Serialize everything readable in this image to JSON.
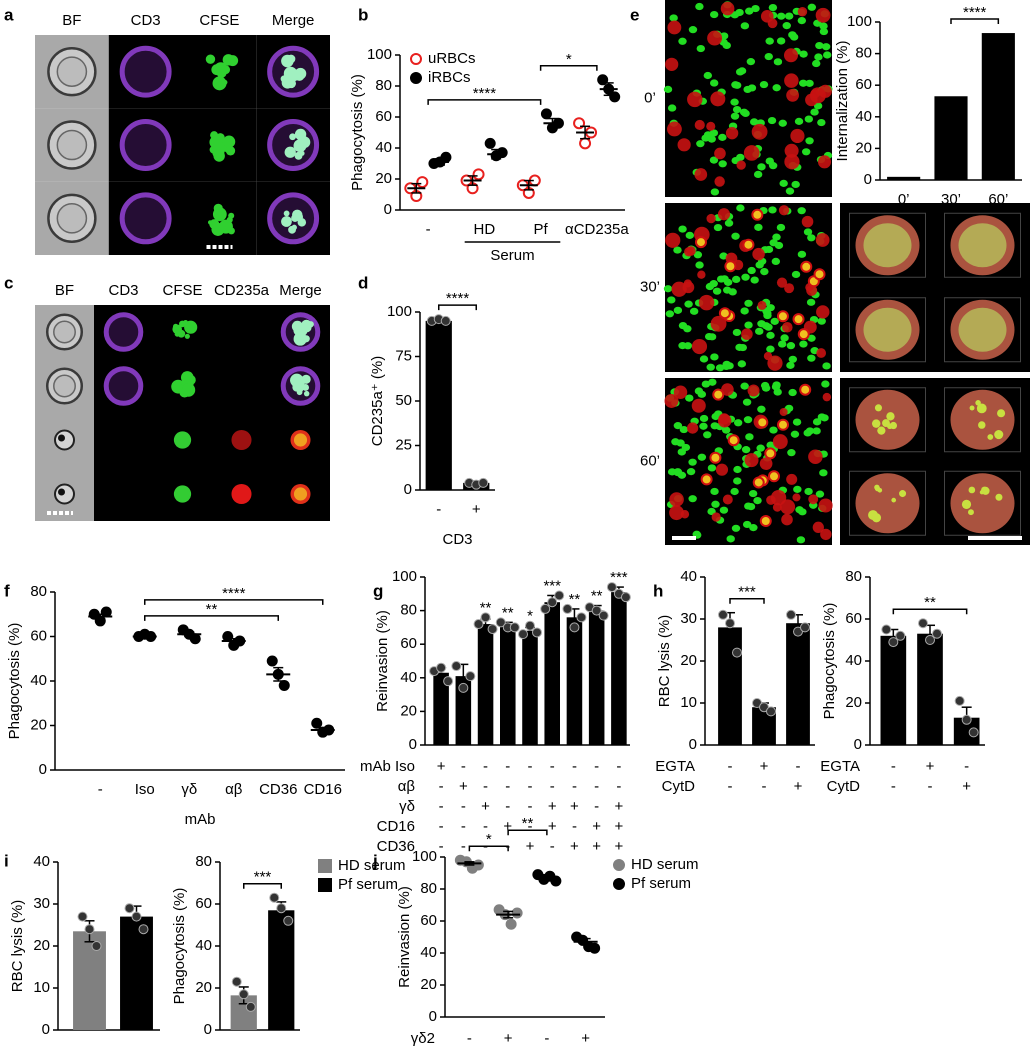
{
  "images": [
    {
      "panel": "a",
      "columns": [
        "BF",
        "CD3",
        "CFSE",
        "Merge"
      ],
      "column_colors": [
        "#000000",
        "#8a3fc8",
        "#1f9a1f",
        "#000000"
      ]
    },
    {
      "panel": "c",
      "columns": [
        "BF",
        "CD3",
        "CFSE",
        "CD235a",
        "Merge"
      ],
      "column_colors": [
        "#000000",
        "#8a3fc8",
        "#1f9a1f",
        "#e01818",
        "#000000"
      ]
    },
    {
      "panel": "e",
      "rows": [
        "0’",
        "30’",
        "60’"
      ]
    }
  ],
  "chart_data": [
    {
      "panel": "b",
      "type": "dot",
      "ylabel": "Phagocytosis (%)",
      "categories": [
        "-",
        "HD",
        "Pf",
        "αCD235a"
      ],
      "group_label": {
        "text": "Serum",
        "from": 1,
        "to": 2
      },
      "ylim": [
        0,
        100
      ],
      "yticks": [
        0,
        20,
        40,
        60,
        80,
        100
      ],
      "legend_corner": "top-left",
      "series": [
        {
          "name": "uRBCs",
          "color": "#e8201e",
          "marker": "open",
          "points": [
            [
              14,
              9,
              18
            ],
            [
              19,
              14,
              23
            ],
            [
              16,
              11,
              19
            ],
            [
              56,
              43,
              50
            ]
          ],
          "means": [
            14,
            19,
            16,
            50
          ],
          "errors": [
            3,
            3,
            3,
            4
          ]
        },
        {
          "name": "iRBCs",
          "color": "#000000",
          "marker": "filled",
          "points": [
            [
              30,
              31,
              34
            ],
            [
              43,
              35,
              37
            ],
            [
              62,
              53,
              56
            ],
            [
              84,
              78,
              73
            ]
          ],
          "means": [
            31,
            36,
            56,
            78
          ],
          "errors": [
            2,
            3,
            3,
            4
          ]
        }
      ],
      "brackets": [
        {
          "from": 0,
          "to": 2,
          "label": "****"
        },
        {
          "from": 2,
          "to": 3,
          "label": "*"
        }
      ]
    },
    {
      "panel": "d",
      "type": "bar",
      "ylabel": "CD235a⁺ (%)",
      "xlabel": "CD3",
      "categories": [
        "-",
        "+"
      ],
      "values": [
        95,
        4
      ],
      "errors": [
        1,
        1
      ],
      "points": [
        [
          95,
          96,
          95
        ],
        [
          4,
          3,
          4
        ]
      ],
      "color": "#000000",
      "ylim": [
        0,
        100
      ],
      "yticks": [
        0,
        25,
        50,
        75,
        100
      ],
      "brackets": [
        {
          "from": 0,
          "to": 1,
          "label": "****"
        }
      ]
    },
    {
      "type": "bar",
      "ylabel": "Internalization (%)",
      "categories": [
        "0’",
        "30’",
        "60’"
      ],
      "values": [
        2,
        53,
        93
      ],
      "color": "#000000",
      "ylim": [
        0,
        100
      ],
      "yticks": [
        0,
        20,
        40,
        60,
        80,
        100
      ],
      "brackets": [
        {
          "from": 1,
          "to": 2,
          "label": "****"
        }
      ]
    },
    {
      "panel": "f",
      "type": "dot",
      "ylabel": "Phagocytosis (%)",
      "xlabel": "mAb",
      "categories": [
        "-",
        "Iso",
        "γδ",
        "αβ",
        "CD36",
        "CD16"
      ],
      "ylim": [
        0,
        80
      ],
      "yticks": [
        0,
        20,
        40,
        60,
        80
      ],
      "series": [
        {
          "color": "#000000",
          "marker": "filled",
          "points": [
            [
              70,
              67,
              71
            ],
            [
              60,
              61,
              60
            ],
            [
              63,
              61,
              59
            ],
            [
              60,
              56,
              58
            ],
            [
              49,
              43,
              38
            ],
            [
              21,
              17,
              18
            ]
          ],
          "means": [
            69,
            60,
            61,
            58,
            43,
            18
          ],
          "errors": [
            1,
            1,
            1,
            1,
            3,
            1
          ]
        }
      ],
      "brackets": [
        {
          "from": 1,
          "to": 4,
          "label": "**"
        },
        {
          "from": 1,
          "to": 5,
          "label": "****"
        }
      ]
    },
    {
      "panel": "g",
      "type": "bar",
      "ylabel": "Reinvasion (%)",
      "categories": [
        null,
        null,
        null,
        null,
        null,
        null,
        null,
        null,
        null
      ],
      "values": [
        43,
        41,
        72,
        71,
        68,
        85,
        76,
        80,
        91
      ],
      "errors": [
        3,
        7,
        3,
        2,
        2,
        4,
        5,
        3,
        3
      ],
      "points": [
        [
          44,
          46,
          38
        ],
        [
          47,
          34,
          41
        ],
        [
          72,
          76,
          69
        ],
        [
          73,
          70,
          70
        ],
        [
          66,
          71,
          67
        ],
        [
          81,
          85,
          89
        ],
        [
          81,
          70,
          76
        ],
        [
          82,
          80,
          77
        ],
        [
          94,
          90,
          88
        ]
      ],
      "annotations": [
        null,
        null,
        "**",
        "**",
        "*",
        "***",
        "**",
        "**",
        "***"
      ],
      "color": "#000000",
      "row_labels": [
        "mAb Iso",
        "αβ",
        "γδ",
        "CD16",
        "CD36"
      ],
      "matrix": [
        [
          "+",
          "-",
          "-",
          "-",
          "-",
          "-",
          "-",
          "-",
          "-"
        ],
        [
          "-",
          "+",
          "-",
          "-",
          "-",
          "-",
          "-",
          "-",
          "-"
        ],
        [
          "-",
          "-",
          "+",
          "-",
          "-",
          "+",
          "+",
          "-",
          "+"
        ],
        [
          "-",
          "-",
          "-",
          "+",
          "-",
          "+",
          "-",
          "+",
          "+"
        ],
        [
          "-",
          "-",
          "-",
          "-",
          "+",
          "-",
          "+",
          "+",
          "+"
        ]
      ],
      "ylim": [
        0,
        100
      ],
      "yticks": [
        0,
        20,
        40,
        60,
        80,
        100
      ]
    },
    {
      "panel": "h",
      "type": "bar",
      "ylabel": "RBC lysis (%)",
      "categories": [
        null,
        null,
        null
      ],
      "values": [
        28,
        9,
        29
      ],
      "errors": [
        3.5,
        1,
        2
      ],
      "points": [
        [
          31,
          29,
          22
        ],
        [
          10,
          9,
          8
        ],
        [
          31,
          27,
          28
        ]
      ],
      "color": "#000000",
      "row_labels": [
        "EGTA",
        "CytD"
      ],
      "matrix": [
        [
          "-",
          "+",
          "-"
        ],
        [
          "-",
          "-",
          "+"
        ]
      ],
      "ylim": [
        0,
        40
      ],
      "yticks": [
        0,
        10,
        20,
        30,
        40
      ],
      "brackets": [
        {
          "from": 0,
          "to": 1,
          "label": "***"
        }
      ]
    },
    {
      "type": "bar",
      "ylabel": "Phagocytosis (%)",
      "categories": [
        null,
        null,
        null
      ],
      "values": [
        52,
        53,
        13
      ],
      "errors": [
        3,
        4,
        5
      ],
      "points": [
        [
          55,
          49,
          52
        ],
        [
          58,
          50,
          53
        ],
        [
          21,
          12,
          6
        ]
      ],
      "color": "#000000",
      "row_labels": [
        "EGTA",
        "CytD"
      ],
      "matrix": [
        [
          "-",
          "+",
          "-"
        ],
        [
          "-",
          "-",
          "+"
        ]
      ],
      "ylim": [
        0,
        80
      ],
      "yticks": [
        0,
        20,
        40,
        60,
        80
      ],
      "brackets": [
        {
          "from": 0,
          "to": 2,
          "label": "**"
        }
      ]
    },
    {
      "panel": "i",
      "type": "bar",
      "ylabel": "RBC lysis (%)",
      "categories": [
        null,
        null
      ],
      "values": [
        23.5,
        27
      ],
      "errors": [
        2.5,
        2.5
      ],
      "points": [
        [
          27,
          24,
          20
        ],
        [
          29,
          27,
          24
        ]
      ],
      "colors": [
        "#808080",
        "#000000"
      ],
      "ylim": [
        0,
        40
      ],
      "yticks": [
        0,
        10,
        20,
        30,
        40
      ]
    },
    {
      "type": "bar",
      "ylabel": "Phagocytosis (%)",
      "categories": [
        null,
        null
      ],
      "values": [
        16.5,
        57
      ],
      "errors": [
        4,
        4
      ],
      "points": [
        [
          23,
          17,
          11
        ],
        [
          63,
          58,
          52
        ]
      ],
      "colors": [
        "#808080",
        "#000000"
      ],
      "legend": [
        {
          "name": "HD serum",
          "color": "#808080"
        },
        {
          "name": "Pf serum",
          "color": "#000000"
        }
      ],
      "ylim": [
        0,
        80
      ],
      "yticks": [
        0,
        20,
        40,
        60,
        80
      ],
      "brackets": [
        {
          "from": 0,
          "to": 1,
          "label": "***"
        }
      ]
    },
    {
      "panel": "j",
      "type": "dot",
      "ylabel": "Reinvasion (%)",
      "categories": [
        null,
        null,
        null,
        null
      ],
      "row_labels": [
        "γδ2"
      ],
      "matrix": [
        [
          "-",
          "+",
          "-",
          "+"
        ]
      ],
      "legend_corner": "top-right",
      "ylim": [
        0,
        100
      ],
      "yticks": [
        0,
        20,
        40,
        60,
        80,
        100
      ],
      "series": [
        {
          "name": "HD serum",
          "color": "#808080",
          "marker": "filled",
          "points": [
            [
              98,
              97,
              93,
              95
            ],
            [
              67,
              64,
              58,
              65
            ],
            null,
            null
          ],
          "means": [
            96,
            64,
            null,
            null
          ],
          "errors": [
            1,
            2,
            null,
            null
          ]
        },
        {
          "name": "Pf serum",
          "color": "#000000",
          "marker": "filled",
          "points": [
            null,
            null,
            [
              89,
              86,
              88,
              85
            ],
            [
              50,
              48,
              44,
              43
            ]
          ],
          "means": [
            null,
            null,
            87,
            47
          ],
          "errors": [
            null,
            null,
            1,
            2
          ]
        }
      ],
      "brackets": [
        {
          "from": 0,
          "to": 1,
          "label": "*"
        },
        {
          "from": 1,
          "to": 2,
          "label": "**"
        }
      ]
    }
  ]
}
